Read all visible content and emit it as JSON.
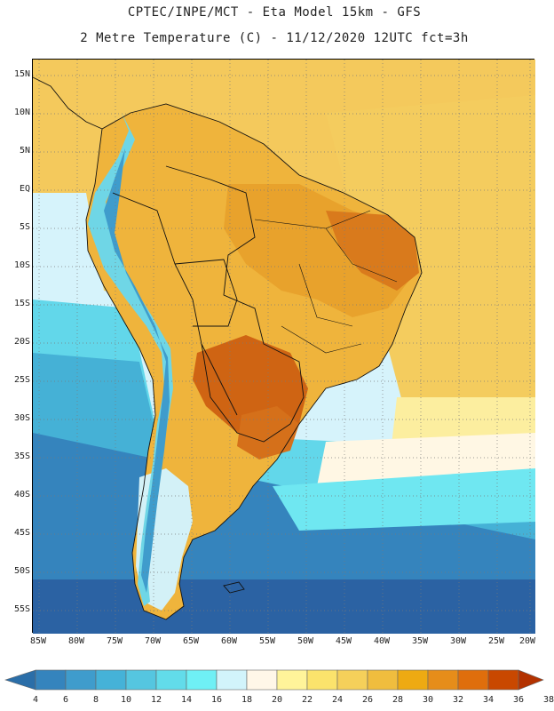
{
  "header": {
    "line1": "CPTEC/INPE/MCT -  Eta Model 15km - GFS",
    "line2": "2 Metre Temperature (C) - 11/12/2020 12UTC fct=3h"
  },
  "axes": {
    "latitudes": [
      "15N",
      "10N",
      "5N",
      "EQ",
      "5S",
      "10S",
      "15S",
      "20S",
      "25S",
      "30S",
      "35S",
      "40S",
      "45S",
      "50S",
      "55S"
    ],
    "longitudes": [
      "85W",
      "80W",
      "75W",
      "70W",
      "65W",
      "60W",
      "55W",
      "50W",
      "45W",
      "40W",
      "35W",
      "30W",
      "25W",
      "20W"
    ]
  },
  "colorbar": {
    "values": [
      "4",
      "6",
      "8",
      "10",
      "12",
      "14",
      "16",
      "18",
      "20",
      "22",
      "24",
      "26",
      "28",
      "30",
      "32",
      "34",
      "36",
      "38"
    ],
    "colors": [
      "#2b6ea8",
      "#3584bd",
      "#3f9ccc",
      "#45b2d8",
      "#55c6e0",
      "#62dcea",
      "#6ff0f5",
      "#d2f4fb",
      "#fff7e8",
      "#fff49a",
      "#fbe36c",
      "#f5d05a",
      "#f0bd3e",
      "#eeaa12",
      "#e68d1a",
      "#df6e0c",
      "#c94800",
      "#b33200"
    ]
  },
  "colors": {
    "ocean_cold": "#2f6aa8",
    "ocean_cool": "#4fc6df",
    "ocean_warm": "#f7d568",
    "land_hot": "#d86a16",
    "andes": "#6fd8e6"
  }
}
